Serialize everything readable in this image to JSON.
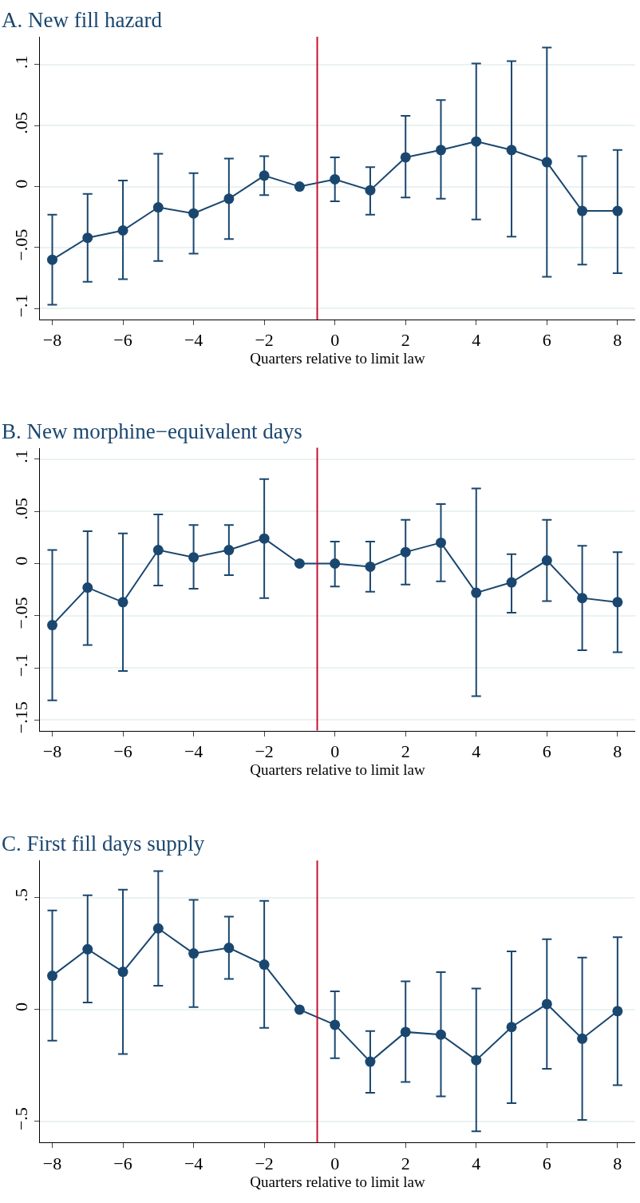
{
  "chart_data": [
    {
      "type": "line",
      "title": "A. New fill hazard",
      "xlabel": "Quarters relative to limit law",
      "x": [
        -8,
        -7,
        -6,
        -5,
        -4,
        -3,
        -2,
        -1,
        0,
        1,
        2,
        3,
        4,
        5,
        6,
        7,
        8
      ],
      "series": [
        {
          "color": "#1a476f",
          "values": [
            -0.06,
            -0.042,
            -0.036,
            -0.017,
            -0.022,
            -0.01,
            0.009,
            0,
            0.006,
            -0.003,
            0.024,
            0.03,
            0.037,
            0.03,
            0.02,
            -0.02,
            -0.02
          ],
          "errors": [
            [
              -0.097,
              -0.023
            ],
            [
              -0.078,
              -0.006
            ],
            [
              -0.076,
              0.005
            ],
            [
              -0.061,
              0.027
            ],
            [
              -0.055,
              0.011
            ],
            [
              -0.043,
              0.023
            ],
            [
              -0.007,
              0.025
            ],
            null,
            [
              -0.012,
              0.024
            ],
            [
              -0.023,
              0.016
            ],
            [
              -0.009,
              0.058
            ],
            [
              -0.01,
              0.071
            ],
            [
              -0.027,
              0.101
            ],
            [
              -0.041,
              0.103
            ],
            [
              -0.074,
              0.114
            ],
            [
              -0.064,
              0.025
            ],
            [
              -0.071,
              0.03
            ]
          ]
        }
      ],
      "marker": "circle",
      "line_style": "solid",
      "grid": "y",
      "xlim": [
        -8.35,
        8.5
      ],
      "xticks": [
        {
          "value": -8,
          "label": "−8"
        },
        {
          "value": -6,
          "label": "−6"
        },
        {
          "value": -4,
          "label": "−4"
        },
        {
          "value": -2,
          "label": "−2"
        },
        0,
        2,
        4,
        6,
        8
      ],
      "ylim": [
        -0.109,
        0.123
      ],
      "yticks": [
        {
          "value": -0.1,
          "label": "−.1"
        },
        {
          "value": -0.05,
          "label": "−.05"
        },
        0,
        {
          "value": 0.05,
          "label": ".05"
        },
        {
          "value": 0.1,
          "label": ".1"
        }
      ],
      "ref_lines": [
        {
          "axis": "x",
          "value": -0.5,
          "color": "#c8102e"
        }
      ]
    },
    {
      "type": "line",
      "title": "B. New morphine−equivalent days",
      "xlabel": "Quarters relative to limit law",
      "x": [
        -8,
        -7,
        -6,
        -5,
        -4,
        -3,
        -2,
        -1,
        0,
        1,
        2,
        3,
        4,
        5,
        6,
        7,
        8
      ],
      "series": [
        {
          "color": "#1a476f",
          "values": [
            -0.059,
            -0.023,
            -0.037,
            0.013,
            0.006,
            0.013,
            0.024,
            0,
            0.0,
            -0.003,
            0.011,
            0.02,
            -0.028,
            -0.018,
            0.003,
            -0.033,
            -0.037
          ],
          "errors": [
            [
              -0.131,
              0.013
            ],
            [
              -0.078,
              0.031
            ],
            [
              -0.103,
              0.029
            ],
            [
              -0.021,
              0.047
            ],
            [
              -0.024,
              0.037
            ],
            [
              -0.011,
              0.037
            ],
            [
              -0.033,
              0.081
            ],
            null,
            [
              -0.022,
              0.021
            ],
            [
              -0.027,
              0.021
            ],
            [
              -0.02,
              0.042
            ],
            [
              -0.017,
              0.057
            ],
            [
              -0.127,
              0.072
            ],
            [
              -0.047,
              0.009
            ],
            [
              -0.036,
              0.042
            ],
            [
              -0.083,
              0.017
            ],
            [
              -0.085,
              0.011
            ]
          ]
        }
      ],
      "marker": "circle",
      "line_style": "solid",
      "grid": "y",
      "xlim": [
        -8.35,
        8.5
      ],
      "xticks": [
        {
          "value": -8,
          "label": "−8"
        },
        {
          "value": -6,
          "label": "−6"
        },
        {
          "value": -4,
          "label": "−4"
        },
        {
          "value": -2,
          "label": "−2"
        },
        0,
        2,
        4,
        6,
        8
      ],
      "ylim": [
        -0.16,
        0.111
      ],
      "yticks": [
        {
          "value": -0.15,
          "label": "−.15"
        },
        {
          "value": -0.1,
          "label": "−.1"
        },
        {
          "value": -0.05,
          "label": "−.05"
        },
        0,
        {
          "value": 0.05,
          "label": ".05"
        },
        {
          "value": 0.1,
          "label": ".1"
        }
      ],
      "ref_lines": [
        {
          "axis": "x",
          "value": -0.5,
          "color": "#c8102e"
        }
      ]
    },
    {
      "type": "line",
      "title": "C. First fill days supply",
      "xlabel": "Quarters relative to limit law",
      "x": [
        -8,
        -7,
        -6,
        -5,
        -4,
        -3,
        -2,
        -1,
        0,
        1,
        2,
        3,
        4,
        5,
        6,
        7,
        8
      ],
      "series": [
        {
          "color": "#1a476f",
          "values": [
            0.151,
            0.27,
            0.169,
            0.363,
            0.251,
            0.276,
            0.201,
            0,
            -0.068,
            -0.233,
            -0.1,
            -0.112,
            -0.226,
            -0.078,
            0.025,
            -0.13,
            -0.007
          ],
          "errors": [
            [
              -0.139,
              0.443
            ],
            [
              0.032,
              0.511
            ],
            [
              -0.199,
              0.536
            ],
            [
              0.107,
              0.619
            ],
            [
              0.011,
              0.491
            ],
            [
              0.137,
              0.416
            ],
            [
              -0.082,
              0.486
            ],
            null,
            [
              -0.217,
              0.082
            ],
            [
              -0.372,
              -0.096
            ],
            [
              -0.324,
              0.126
            ],
            [
              -0.388,
              0.167
            ],
            [
              -0.544,
              0.094
            ],
            [
              -0.418,
              0.26
            ],
            [
              -0.265,
              0.315
            ],
            [
              -0.493,
              0.233
            ],
            [
              -0.338,
              0.324
            ]
          ]
        }
      ],
      "marker": "circle",
      "line_style": "solid",
      "grid": "y",
      "xlim": [
        -8.35,
        8.5
      ],
      "xticks": [
        {
          "value": -8,
          "label": "−8"
        },
        {
          "value": -6,
          "label": "−6"
        },
        {
          "value": -4,
          "label": "−4"
        },
        {
          "value": -2,
          "label": "−2"
        },
        0,
        2,
        4,
        6,
        8
      ],
      "ylim": [
        -0.594,
        0.667
      ],
      "yticks": [
        {
          "value": -0.5,
          "label": "−.5"
        },
        0,
        {
          "value": 0.5,
          "label": ".5"
        }
      ],
      "ref_lines": [
        {
          "axis": "x",
          "value": -0.5,
          "color": "#c8102e"
        }
      ]
    }
  ]
}
